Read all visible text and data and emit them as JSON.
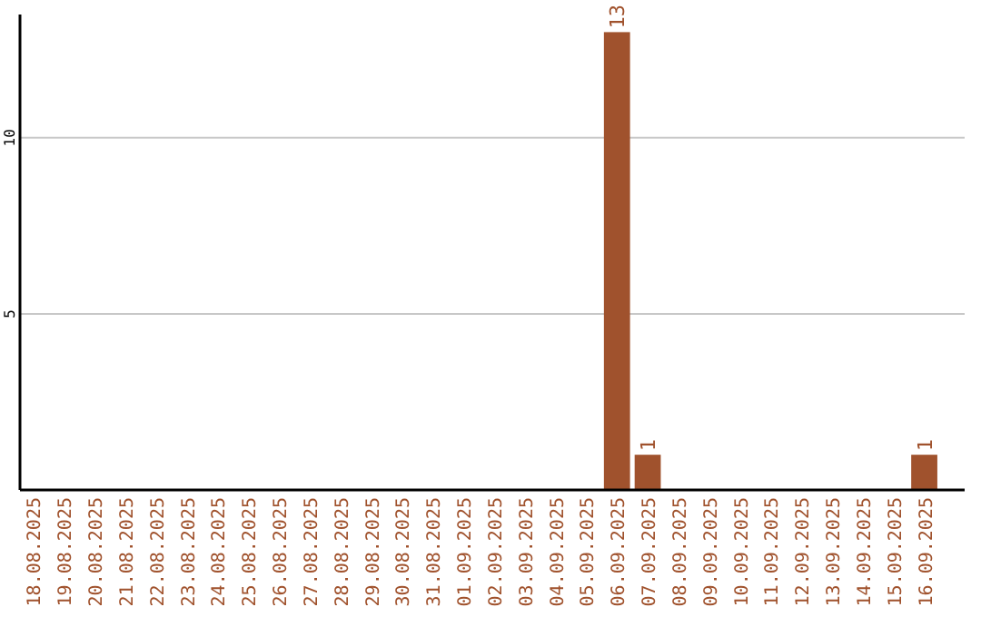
{
  "chart_data": {
    "type": "bar",
    "categories": [
      "18.08.2025",
      "19.08.2025",
      "20.08.2025",
      "21.08.2025",
      "22.08.2025",
      "23.08.2025",
      "24.08.2025",
      "25.08.2025",
      "26.08.2025",
      "27.08.2025",
      "28.08.2025",
      "29.08.2025",
      "30.08.2025",
      "31.08.2025",
      "01.09.2025",
      "02.09.2025",
      "03.09.2025",
      "04.09.2025",
      "05.09.2025",
      "06.09.2025",
      "07.09.2025",
      "08.09.2025",
      "09.09.2025",
      "10.09.2025",
      "11.09.2025",
      "12.09.2025",
      "13.09.2025",
      "14.09.2025",
      "15.09.2025",
      "16.09.2025"
    ],
    "values": [
      0,
      0,
      0,
      0,
      0,
      0,
      0,
      0,
      0,
      0,
      0,
      0,
      0,
      0,
      0,
      0,
      0,
      0,
      0,
      13,
      1,
      0,
      0,
      0,
      0,
      0,
      0,
      0,
      0,
      1
    ],
    "value_labels": [
      null,
      null,
      null,
      null,
      null,
      null,
      null,
      null,
      null,
      null,
      null,
      null,
      null,
      null,
      null,
      null,
      null,
      null,
      null,
      "13",
      "1",
      null,
      null,
      null,
      null,
      null,
      null,
      null,
      null,
      "1"
    ],
    "color": "#a0522d",
    "ylim": [
      0,
      13.5
    ],
    "yticks": [
      5,
      10
    ],
    "grid": "y"
  }
}
